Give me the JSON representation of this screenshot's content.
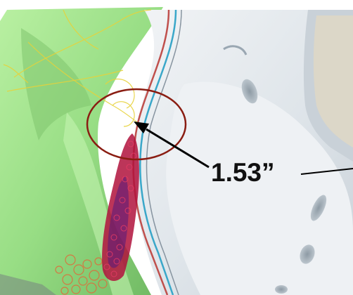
{
  "annotation": {
    "measurement_label": "1.53”"
  },
  "colors": {
    "background": "#ffffff",
    "green_part": "#9fe08a",
    "grey_shell": "#d6dde3",
    "highlight_circle": "#8a1d12",
    "arrow": "#000000",
    "interference_points": "#b0123c",
    "wire_yellow": "#e7d23a"
  },
  "icons": {
    "highlight": "circle-outline",
    "pointer": "arrow-icon"
  }
}
